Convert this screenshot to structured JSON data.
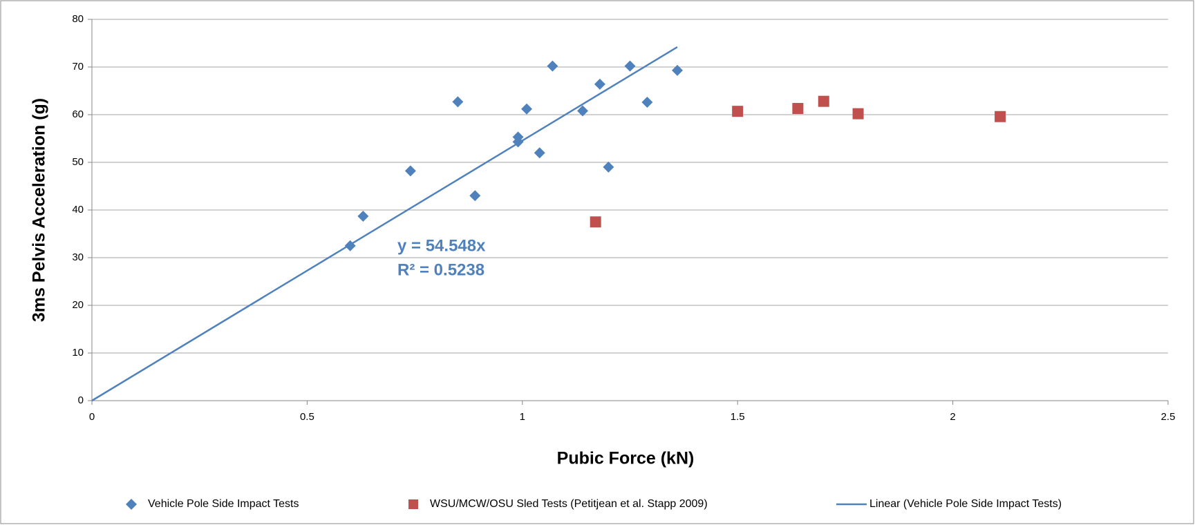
{
  "chart_data": {
    "type": "scatter",
    "xlabel": "Pubic Force (kN)",
    "ylabel": "3ms Pelvis Acceleration (g)",
    "annotations": [
      "y = 54.548x",
      "R² = 0.5238"
    ],
    "xlim": [
      0,
      2.5
    ],
    "xticks": [
      0,
      0.5,
      1,
      1.5,
      2,
      2.5
    ],
    "ylim": [
      0,
      80
    ],
    "yticks": [
      0,
      10,
      20,
      30,
      40,
      50,
      60,
      70,
      80
    ],
    "grid": true,
    "legend": "bottom",
    "series": [
      {
        "name": "Vehicle Pole Side Impact Tests",
        "color": "#4f81bd",
        "type": "scatter",
        "marker": "diamond",
        "x": [
          0.6,
          0.63,
          0.74,
          0.85,
          0.89,
          0.99,
          0.99,
          1.01,
          1.04,
          1.07,
          1.14,
          1.18,
          1.2,
          1.25,
          1.29,
          1.36
        ],
        "values": [
          32.5,
          38.7,
          48.2,
          62.7,
          43,
          55.3,
          54.3,
          61.2,
          52,
          70.2,
          60.8,
          66.4,
          49,
          70.2,
          62.6,
          69.3
        ]
      },
      {
        "name": "WSU/MCW/OSU Sled Tests (Petitjean et al. Stapp 2009)",
        "color": "#c0504d",
        "type": "scatter",
        "marker": "square",
        "x": [
          1.17,
          1.5,
          1.64,
          1.7,
          1.78,
          2.11
        ],
        "values": [
          37.5,
          60.7,
          61.3,
          62.8,
          60.2,
          59.6
        ]
      },
      {
        "name": "Linear (Vehicle Pole Side Impact Tests)",
        "color": "#4f81bd",
        "type": "line",
        "x": [
          0,
          1.36
        ],
        "values": [
          0,
          74.2
        ]
      }
    ]
  }
}
